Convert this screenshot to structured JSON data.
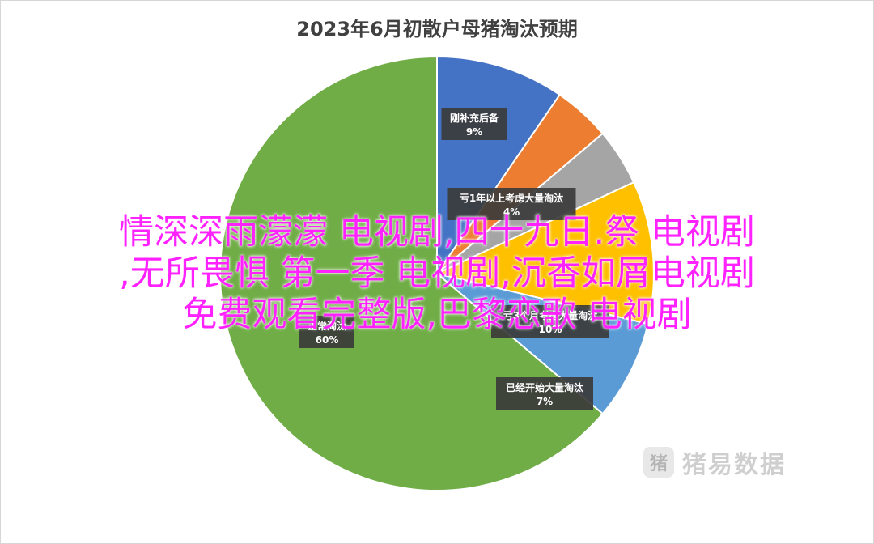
{
  "chart_data": {
    "type": "pie",
    "title": "2023年6月初散户母猪淘汰预期",
    "start_angle_deg": 0,
    "direction": "clockwise",
    "slices": [
      {
        "label": "刚补充后备",
        "value": 9,
        "display": "9%",
        "color": "#4472c4"
      },
      {
        "label": "",
        "value": 4,
        "display": "",
        "color": "#ed7d31"
      },
      {
        "label": "亏1年以上考虑大量淘汰",
        "value": 4,
        "display": "4%",
        "color": "#a5a5a5"
      },
      {
        "label": "亏3个月考虑大量淘汰",
        "value": 10,
        "display": "10%",
        "color": "#ffc000"
      },
      {
        "label": "已经开始大量淘汰",
        "value": 7,
        "display": "7%",
        "color": "#5b9bd5"
      },
      {
        "label": "正常淘汰",
        "value": 60,
        "display": "60%",
        "color": "#70ad47"
      }
    ]
  },
  "watermark": {
    "logo": "猪",
    "text": "猪易数据"
  },
  "overlay": {
    "lines": [
      "情深深雨濛濛 电视剧,四十九日.祭 电视剧",
      ",无所畏惧 第一季 电视剧,沉香如屑电视剧",
      "免费观看完整版,巴黎恋歌 电视剧"
    ]
  }
}
